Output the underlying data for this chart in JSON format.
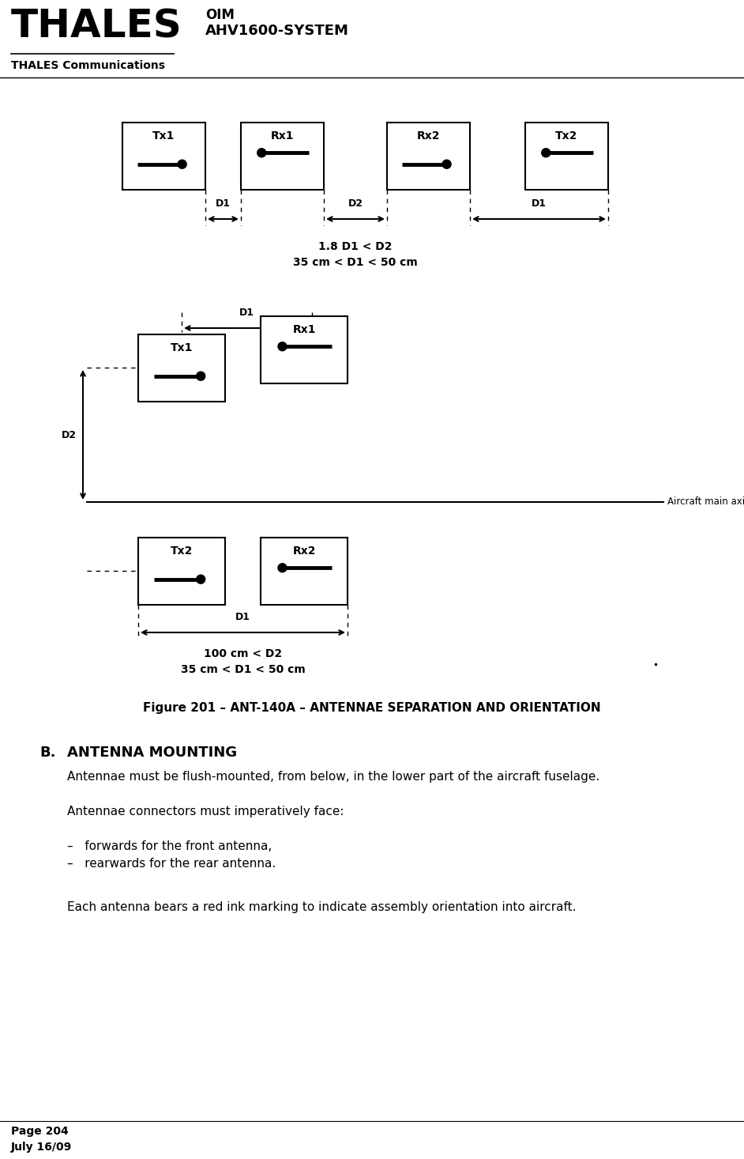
{
  "title_thales": "THALES",
  "title_oim": "OIM",
  "title_system": "AHV1600-SYSTEM",
  "subtitle": "THALES Communications",
  "page": "Page 204",
  "date": "July 16/09",
  "figure_caption": "Figure 201 – ANT-140A – ANTENNAE SEPARATION AND ORIENTATION",
  "section_title": "B.",
  "section_title2": "ANTENNA MOUNTING",
  "para1": "Antennae must be flush-mounted, from below, in the lower part of the aircraft fuselage.",
  "para2": "Antennae connectors must imperatively face:",
  "bullet1": "–   forwards for the front antenna,",
  "bullet2": "–   rearwards for the rear antenna.",
  "para3": "Each antenna bears a red ink marking to indicate assembly orientation into aircraft.",
  "formula1_top": "1.8 D1 < D2",
  "formula1_bot": "35 cm < D1 < 50 cm",
  "formula2_top": "100 cm < D2",
  "formula2_bot": "35 cm < D1 < 50 cm",
  "axis_label": "Aircraft main axis",
  "bg_color": "#ffffff",
  "line_color": "#000000"
}
